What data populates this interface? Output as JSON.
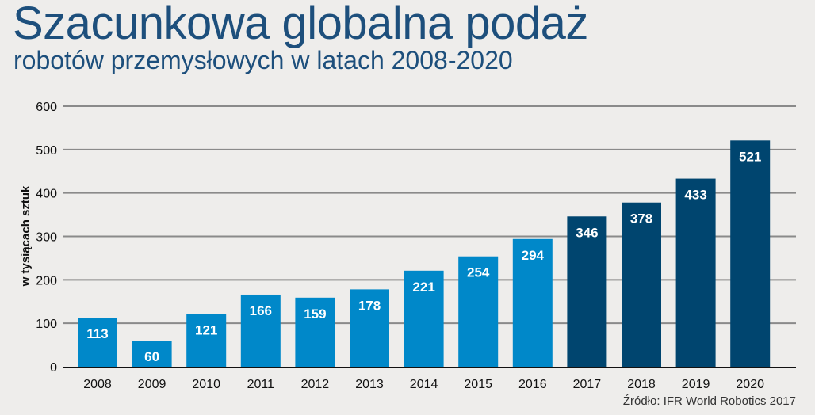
{
  "chart_data": {
    "type": "bar",
    "title": "Szacunkowa globalna podaż",
    "subtitle": "robotów przemysłowych w latach 2008-2020",
    "xlabel": "",
    "ylabel": "w tysiącach sztuk",
    "ylim": [
      0,
      600
    ],
    "yticks": [
      0,
      100,
      200,
      300,
      400,
      500,
      600
    ],
    "grid": true,
    "categories": [
      "2008",
      "2009",
      "2010",
      "2011",
      "2012",
      "2013",
      "2014",
      "2015",
      "2016",
      "2017",
      "2018",
      "2019",
      "2020"
    ],
    "values": [
      113,
      60,
      121,
      166,
      159,
      178,
      221,
      254,
      294,
      346,
      378,
      433,
      521
    ],
    "estimated_from": "2017",
    "colors": {
      "actual": "#0088c9",
      "forecast": "#00456f"
    },
    "source": "Źródło: IFR World Robotics 2017"
  }
}
